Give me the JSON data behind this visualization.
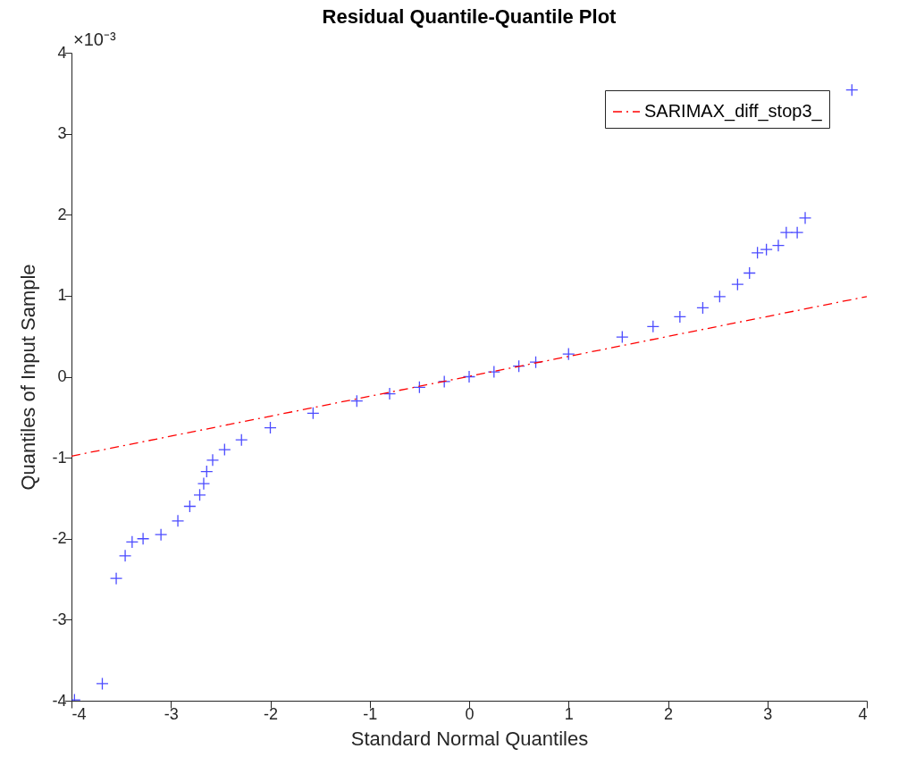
{
  "chart_data": {
    "type": "scatter",
    "title": "Residual Quantile-Quantile Plot",
    "xlabel": "Standard Normal Quantiles",
    "ylabel": "Quantiles of Input Sample",
    "annotations": [
      "×10⁻³"
    ],
    "xlim": [
      -4,
      4
    ],
    "xticks": [
      -4,
      -3,
      -2,
      -1,
      0,
      1,
      2,
      3,
      4
    ],
    "ylim": [
      -4,
      4
    ],
    "yticks": [
      -4,
      -3,
      -2,
      -1,
      0,
      1,
      2,
      3,
      4
    ],
    "grid": false,
    "legend": "top right",
    "series": [
      {
        "color": "#0000ff",
        "marker": "cross",
        "x": [
          -3.97,
          -3.69,
          -3.55,
          -3.46,
          -3.39,
          -3.28,
          -3.1,
          -2.93,
          -2.81,
          -2.71,
          -2.67,
          -2.64,
          -2.58,
          -2.46,
          -2.29,
          -2.0,
          -1.57,
          -1.13,
          -0.8,
          -0.5,
          -0.25,
          0,
          0.25,
          0.5,
          0.67,
          1.0,
          1.54,
          1.85,
          2.12,
          2.35,
          2.52,
          2.7,
          2.82,
          2.9,
          2.99,
          3.11,
          3.19,
          3.3,
          3.38,
          3.85
        ],
        "values": [
          -3.99,
          -3.79,
          -2.49,
          -2.21,
          -2.04,
          -2.0,
          -1.95,
          -1.78,
          -1.6,
          -1.46,
          -1.32,
          -1.17,
          -1.03,
          -0.9,
          -0.78,
          -0.63,
          -0.45,
          -0.3,
          -0.21,
          -0.13,
          -0.06,
          0,
          0.06,
          0.13,
          0.18,
          0.28,
          0.49,
          0.62,
          0.74,
          0.85,
          0.99,
          1.14,
          1.28,
          1.53,
          1.57,
          1.62,
          1.78,
          1.78,
          1.96,
          3.54
        ]
      },
      {
        "type": "line",
        "name": "SARIMAX_diff_stop3_",
        "color": "#ff0000",
        "line_style": "dashed",
        "x": [
          -4,
          4
        ],
        "values": [
          -0.98,
          0.99
        ]
      }
    ]
  }
}
